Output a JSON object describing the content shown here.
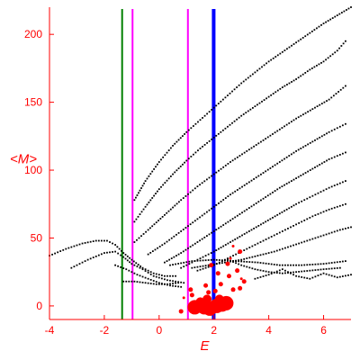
{
  "chart_data": {
    "type": "scatter",
    "title": "",
    "xlabel": "E",
    "ylabel": "<M>",
    "xlim": [
      -4,
      7
    ],
    "ylim": [
      -10,
      220
    ],
    "x_ticks": [
      -4,
      -2,
      0,
      2,
      4,
      6
    ],
    "y_ticks": [
      0,
      50,
      100,
      150,
      200
    ],
    "grid": false,
    "legend": "none",
    "colors": {
      "axes": "#ff0000",
      "curves": "#000000",
      "markers": "#ff0000",
      "green_line": "#008000",
      "magenta_lines": "#ff00ff",
      "blue_line": "#0000ff"
    },
    "vertical_lines": [
      {
        "x": -1.35,
        "color": "#008000",
        "weight": "thin"
      },
      {
        "x": -0.97,
        "color": "#ff00ff",
        "weight": "thin"
      },
      {
        "x": 1.05,
        "color": "#ff00ff",
        "weight": "thin"
      },
      {
        "x": 1.99,
        "color": "#0000ff",
        "weight": "thick"
      }
    ],
    "series": [
      {
        "color": "#000000",
        "style": "dotted",
        "points": [
          [
            -4,
            37
          ],
          [
            -3.4,
            42
          ],
          [
            -2.8,
            46
          ],
          [
            -2.3,
            48
          ],
          [
            -1.9,
            48
          ],
          [
            -1.6,
            45
          ],
          [
            -1.3,
            39
          ],
          [
            -1.0,
            34
          ],
          [
            -0.6,
            28
          ],
          [
            -0.2,
            24
          ],
          [
            0.2,
            22
          ],
          [
            0.6,
            22
          ]
        ]
      },
      {
        "color": "#000000",
        "style": "dotted",
        "points": [
          [
            -3.2,
            28
          ],
          [
            -2.6,
            34
          ],
          [
            -2.0,
            39
          ],
          [
            -1.6,
            40
          ],
          [
            -1.3,
            36
          ],
          [
            -1.0,
            31
          ],
          [
            -0.6,
            27
          ],
          [
            -0.2,
            22
          ],
          [
            0.3,
            19
          ],
          [
            0.9,
            17
          ]
        ]
      },
      {
        "color": "#000000",
        "style": "dotted",
        "points": [
          [
            -1.6,
            30
          ],
          [
            -1.2,
            27
          ],
          [
            -0.8,
            23
          ],
          [
            -0.4,
            20
          ],
          [
            0.0,
            17
          ],
          [
            0.4,
            15
          ],
          [
            0.8,
            14
          ]
        ]
      },
      {
        "color": "#000000",
        "style": "dotted",
        "points": [
          [
            -1.3,
            18
          ],
          [
            -0.9,
            18
          ],
          [
            -0.5,
            17
          ],
          [
            -0.1,
            16
          ],
          [
            0.3,
            16
          ],
          [
            0.7,
            17
          ]
        ]
      },
      {
        "color": "#000000",
        "style": "dotted",
        "points": [
          [
            -0.9,
            78
          ],
          [
            -0.5,
            92
          ],
          [
            0,
            106
          ],
          [
            0.5,
            118
          ],
          [
            1.0,
            128
          ],
          [
            1.5,
            137
          ],
          [
            2.0,
            146
          ],
          [
            2.5,
            155
          ],
          [
            3.0,
            164
          ],
          [
            3.5,
            172
          ],
          [
            4.0,
            180
          ],
          [
            4.5,
            187
          ],
          [
            5.0,
            194
          ],
          [
            5.5,
            201
          ],
          [
            6.0,
            208
          ],
          [
            6.5,
            214
          ],
          [
            7.0,
            220
          ]
        ]
      },
      {
        "color": "#000000",
        "style": "dotted",
        "points": [
          [
            -0.9,
            62
          ],
          [
            -0.5,
            73
          ],
          [
            0,
            86
          ],
          [
            0.5,
            97
          ],
          [
            1.0,
            107
          ],
          [
            1.5,
            116
          ],
          [
            2.0,
            124
          ],
          [
            2.5,
            132
          ],
          [
            3.0,
            140
          ],
          [
            3.5,
            147
          ],
          [
            4.0,
            154
          ],
          [
            4.5,
            161
          ],
          [
            5.0,
            167
          ],
          [
            5.5,
            174
          ],
          [
            6.0,
            180
          ],
          [
            6.5,
            188
          ],
          [
            6.8,
            195
          ]
        ]
      },
      {
        "color": "#000000",
        "style": "dotted",
        "points": [
          [
            -0.9,
            47
          ],
          [
            -0.4,
            56
          ],
          [
            0.2,
            67
          ],
          [
            0.8,
            78
          ],
          [
            1.4,
            88
          ],
          [
            2.0,
            97
          ],
          [
            2.6,
            106
          ],
          [
            3.2,
            114
          ],
          [
            3.8,
            122
          ],
          [
            4.4,
            130
          ],
          [
            5.0,
            138
          ],
          [
            5.6,
            145
          ],
          [
            6.2,
            152
          ],
          [
            6.8,
            162
          ]
        ]
      },
      {
        "color": "#000000",
        "style": "dotted",
        "points": [
          [
            -0.4,
            38
          ],
          [
            0.2,
            46
          ],
          [
            0.8,
            55
          ],
          [
            1.4,
            64
          ],
          [
            2.0,
            73
          ],
          [
            2.6,
            82
          ],
          [
            3.2,
            90
          ],
          [
            3.8,
            98
          ],
          [
            4.4,
            106
          ],
          [
            5.0,
            114
          ],
          [
            5.6,
            121
          ],
          [
            6.2,
            128
          ],
          [
            6.8,
            134
          ]
        ]
      },
      {
        "color": "#000000",
        "style": "dotted",
        "points": [
          [
            0.2,
            32
          ],
          [
            0.8,
            39
          ],
          [
            1.4,
            47
          ],
          [
            2.0,
            55
          ],
          [
            2.6,
            63
          ],
          [
            3.2,
            71
          ],
          [
            3.8,
            79
          ],
          [
            4.4,
            87
          ],
          [
            5.0,
            94
          ],
          [
            5.6,
            101
          ],
          [
            6.2,
            108
          ],
          [
            6.8,
            113
          ]
        ]
      },
      {
        "color": "#000000",
        "style": "dotted",
        "points": [
          [
            0.8,
            28
          ],
          [
            1.4,
            34
          ],
          [
            2.0,
            40
          ],
          [
            2.6,
            47
          ],
          [
            3.2,
            54
          ],
          [
            3.8,
            61
          ],
          [
            4.4,
            68
          ],
          [
            5.0,
            75
          ],
          [
            5.6,
            81
          ],
          [
            6.2,
            87
          ],
          [
            6.8,
            92
          ]
        ]
      },
      {
        "color": "#000000",
        "style": "dotted",
        "points": [
          [
            1.4,
            26
          ],
          [
            2.0,
            30
          ],
          [
            2.6,
            36
          ],
          [
            3.2,
            42
          ],
          [
            3.8,
            48
          ],
          [
            4.4,
            54
          ],
          [
            5.0,
            60
          ],
          [
            5.6,
            66
          ],
          [
            6.2,
            71
          ],
          [
            6.8,
            75
          ]
        ]
      },
      {
        "color": "#000000",
        "style": "dotted",
        "points": [
          [
            1.2,
            28
          ],
          [
            1.8,
            30
          ],
          [
            2.4,
            32
          ],
          [
            3.0,
            34
          ],
          [
            3.6,
            37
          ],
          [
            4.2,
            40
          ],
          [
            4.8,
            44
          ],
          [
            5.4,
            48
          ],
          [
            6.0,
            52
          ],
          [
            6.6,
            56
          ],
          [
            7.0,
            58
          ]
        ]
      },
      {
        "color": "#000000",
        "style": "dotted",
        "points": [
          [
            0.4,
            30
          ],
          [
            1.2,
            33
          ],
          [
            2.0,
            34
          ],
          [
            2.8,
            33
          ],
          [
            3.6,
            32
          ],
          [
            4.4,
            30
          ],
          [
            5.2,
            30
          ],
          [
            6.0,
            31
          ],
          [
            6.8,
            33
          ]
        ]
      },
      {
        "color": "#000000",
        "style": "dotted",
        "points": [
          [
            2.5,
            34
          ],
          [
            3.0,
            30
          ],
          [
            3.5,
            27
          ],
          [
            4.0,
            25
          ],
          [
            4.5,
            24
          ],
          [
            5.0,
            25
          ],
          [
            5.5,
            26
          ],
          [
            6.0,
            27
          ],
          [
            6.6,
            28
          ]
        ]
      },
      {
        "color": "#000000",
        "style": "dotted",
        "points": [
          [
            3.5,
            20
          ],
          [
            4.0,
            23
          ],
          [
            4.5,
            27
          ],
          [
            5.0,
            22
          ],
          [
            5.5,
            20
          ],
          [
            6.0,
            24
          ],
          [
            6.5,
            21
          ],
          [
            7.0,
            23
          ]
        ]
      }
    ],
    "markers": [
      {
        "x": 1.3,
        "y": -1,
        "size": "large"
      },
      {
        "x": 1.65,
        "y": -1,
        "size": "large"
      },
      {
        "x": 1.85,
        "y": -2,
        "size": "large"
      },
      {
        "x": 2.1,
        "y": 0,
        "size": "large"
      },
      {
        "x": 2.3,
        "y": 1,
        "size": "large"
      },
      {
        "x": 2.45,
        "y": 2,
        "size": "large"
      },
      {
        "x": 1.75,
        "y": 5,
        "size": "medium"
      },
      {
        "x": 2.2,
        "y": 5,
        "size": "medium"
      },
      {
        "x": 1.5,
        "y": 3,
        "size": "medium"
      },
      {
        "x": 1.2,
        "y": 8,
        "size": "small"
      },
      {
        "x": 1.8,
        "y": 10,
        "size": "small"
      },
      {
        "x": 2.05,
        "y": 11,
        "size": "small"
      },
      {
        "x": 2.7,
        "y": 12,
        "size": "small"
      },
      {
        "x": 2.95,
        "y": 13,
        "size": "small"
      },
      {
        "x": 1.7,
        "y": 15,
        "size": "small"
      },
      {
        "x": 2.25,
        "y": 16,
        "size": "small"
      },
      {
        "x": 3.1,
        "y": 18,
        "size": "small"
      },
      {
        "x": 2.55,
        "y": 22,
        "size": "small"
      },
      {
        "x": 2.15,
        "y": 24,
        "size": "small"
      },
      {
        "x": 2.85,
        "y": 26,
        "size": "small"
      },
      {
        "x": 1.9,
        "y": 30,
        "size": "small"
      },
      {
        "x": 2.5,
        "y": 31,
        "size": "small"
      },
      {
        "x": 2.95,
        "y": 40,
        "size": "small"
      },
      {
        "x": 1.15,
        "y": 12,
        "size": "small"
      },
      {
        "x": 0.8,
        "y": -4,
        "size": "small"
      },
      {
        "x": 0.9,
        "y": 6,
        "size": "tiny"
      },
      {
        "x": 3.0,
        "y": 20,
        "size": "tiny"
      },
      {
        "x": 2.6,
        "y": 35,
        "size": "tiny"
      },
      {
        "x": 2.7,
        "y": 44,
        "size": "tiny"
      }
    ]
  }
}
